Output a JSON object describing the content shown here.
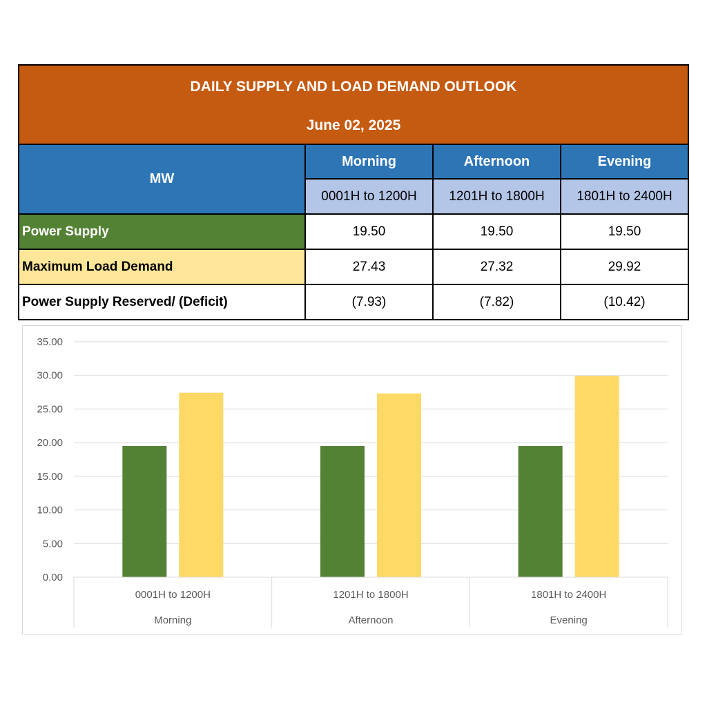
{
  "table": {
    "title": "DAILY SUPPLY AND LOAD DEMAND OUTLOOK",
    "date": "June 02, 2025",
    "unit_label": "MW",
    "periods": [
      {
        "name": "Morning",
        "time": "0001H to 1200H"
      },
      {
        "name": "Afternoon",
        "time": "1201H to 1800H"
      },
      {
        "name": "Evening",
        "time": "1801H to 2400H"
      }
    ],
    "rows": [
      {
        "label": "Power Supply",
        "values": [
          "19.50",
          "19.50",
          "19.50"
        ]
      },
      {
        "label": "Maximum Load Demand",
        "values": [
          "27.43",
          "27.32",
          "29.92"
        ]
      },
      {
        "label": "Power Supply Reserved/ (Deficit)",
        "values": [
          "(7.93)",
          "(7.82)",
          "(10.42)"
        ]
      }
    ]
  },
  "colors": {
    "title_bg": "#c55a11",
    "header_bg": "#2e75b6",
    "time_bg": "#b4c6e7",
    "supply": "#548235",
    "demand": "#ffd966",
    "demand_label_bg": "#ffe699"
  },
  "chart_data": {
    "type": "bar",
    "categories": [
      {
        "time": "0001H to 1200H",
        "period": "Morning"
      },
      {
        "time": "1201H to 1800H",
        "period": "Afternoon"
      },
      {
        "time": "1801H to 2400H",
        "period": "Evening"
      }
    ],
    "series": [
      {
        "values": [
          19.5,
          19.5,
          19.5
        ],
        "color": "#548235"
      },
      {
        "values": [
          27.43,
          27.32,
          29.92
        ],
        "color": "#ffd966"
      }
    ],
    "ylim": [
      0,
      35
    ],
    "yticks": [
      "0.00",
      "5.00",
      "10.00",
      "15.00",
      "20.00",
      "25.00",
      "30.00",
      "35.00"
    ],
    "grid": true
  }
}
